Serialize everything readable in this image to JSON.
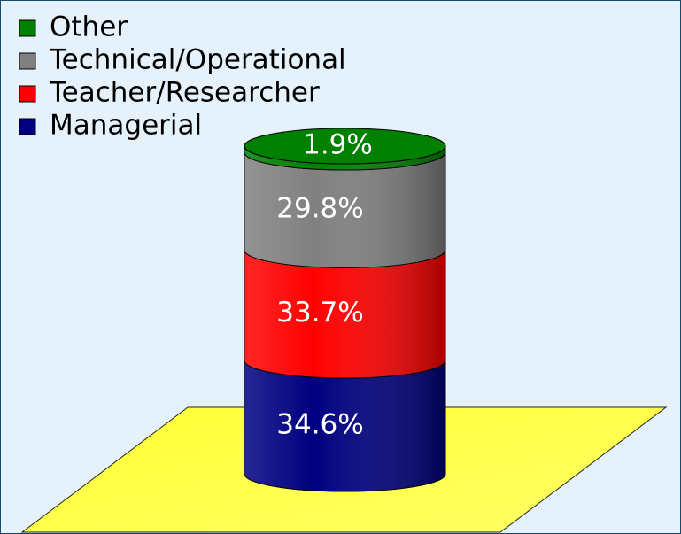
{
  "chart_data": {
    "type": "bar",
    "stacked": true,
    "legend": "upper left",
    "categories": [
      null
    ],
    "series": [
      {
        "name": "Managerial",
        "color": "#000080",
        "values": [
          34.6
        ],
        "value_labels": [
          "34.6%"
        ]
      },
      {
        "name": "Teacher/Researcher",
        "color": "#ff0000",
        "values": [
          33.7
        ],
        "value_labels": [
          "33.7%"
        ]
      },
      {
        "name": "Technical/Operational",
        "color": "#808080",
        "values": [
          29.8
        ],
        "value_labels": [
          "29.8%"
        ]
      },
      {
        "name": "Other",
        "color": "#008000",
        "values": [
          1.9
        ],
        "value_labels": [
          "1.9%"
        ]
      }
    ]
  }
}
